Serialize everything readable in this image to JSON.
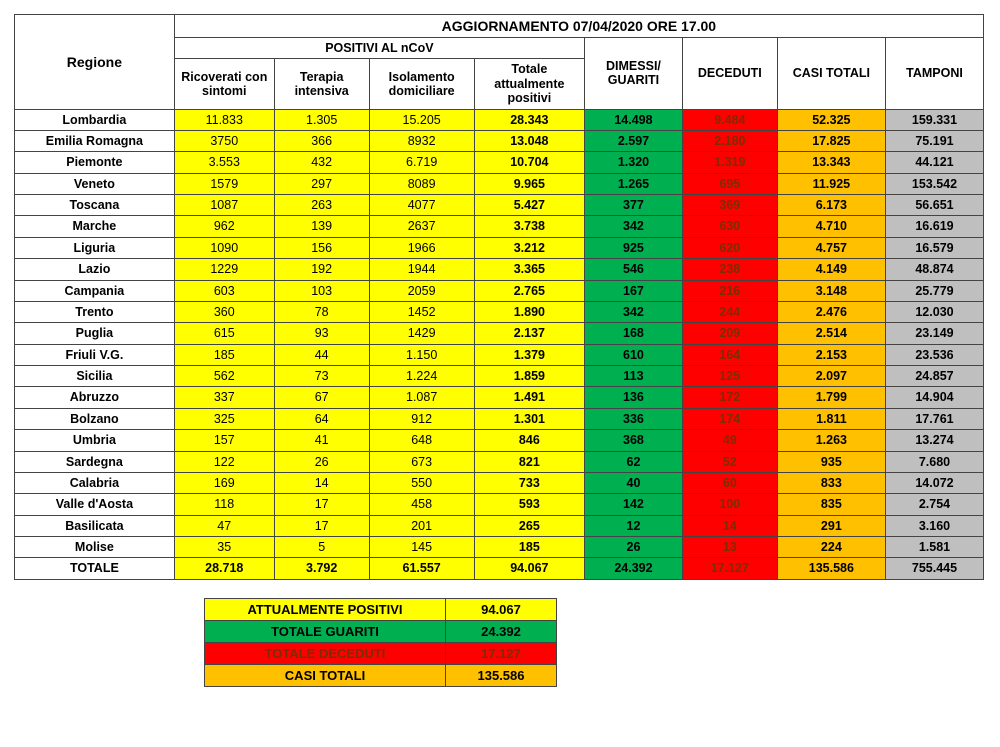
{
  "colors": {
    "yellow": "#ffff00",
    "green": "#00b050",
    "red": "#ff0000",
    "orange": "#ffc000",
    "gray": "#bfbfbf",
    "red_text": "#7a2e00",
    "border": "#444444"
  },
  "title": "AGGIORNAMENTO 07/04/2020 ORE 17.00",
  "header": {
    "regione": "Regione",
    "positivi_group": "POSITIVI AL nCoV",
    "ricoverati": "Ricoverati con sintomi",
    "terapia": "Terapia intensiva",
    "isolamento": "Isolamento domiciliare",
    "totale_pos": "Totale attualmente positivi",
    "dimessi": "DIMESSI/ GUARITI",
    "deceduti": "DECEDUTI",
    "casi_totali": "CASI TOTALI",
    "tamponi": "TAMPONI"
  },
  "rows": [
    {
      "reg": "Lombardia",
      "ric": "11.833",
      "ter": "1.305",
      "iso": "15.205",
      "tot": "28.343",
      "dim": "14.498",
      "dec": "9.484",
      "cas": "52.325",
      "tam": "159.331"
    },
    {
      "reg": "Emilia Romagna",
      "ric": "3750",
      "ter": "366",
      "iso": "8932",
      "tot": "13.048",
      "dim": "2.597",
      "dec": "2.180",
      "cas": "17.825",
      "tam": "75.191"
    },
    {
      "reg": "Piemonte",
      "ric": "3.553",
      "ter": "432",
      "iso": "6.719",
      "tot": "10.704",
      "dim": "1.320",
      "dec": "1.319",
      "cas": "13.343",
      "tam": "44.121"
    },
    {
      "reg": "Veneto",
      "ric": "1579",
      "ter": "297",
      "iso": "8089",
      "tot": "9.965",
      "dim": "1.265",
      "dec": "695",
      "cas": "11.925",
      "tam": "153.542"
    },
    {
      "reg": "Toscana",
      "ric": "1087",
      "ter": "263",
      "iso": "4077",
      "tot": "5.427",
      "dim": "377",
      "dec": "369",
      "cas": "6.173",
      "tam": "56.651"
    },
    {
      "reg": "Marche",
      "ric": "962",
      "ter": "139",
      "iso": "2637",
      "tot": "3.738",
      "dim": "342",
      "dec": "630",
      "cas": "4.710",
      "tam": "16.619"
    },
    {
      "reg": "Liguria",
      "ric": "1090",
      "ter": "156",
      "iso": "1966",
      "tot": "3.212",
      "dim": "925",
      "dec": "620",
      "cas": "4.757",
      "tam": "16.579"
    },
    {
      "reg": "Lazio",
      "ric": "1229",
      "ter": "192",
      "iso": "1944",
      "tot": "3.365",
      "dim": "546",
      "dec": "238",
      "cas": "4.149",
      "tam": "48.874"
    },
    {
      "reg": "Campania",
      "ric": "603",
      "ter": "103",
      "iso": "2059",
      "tot": "2.765",
      "dim": "167",
      "dec": "216",
      "cas": "3.148",
      "tam": "25.779"
    },
    {
      "reg": "Trento",
      "ric": "360",
      "ter": "78",
      "iso": "1452",
      "tot": "1.890",
      "dim": "342",
      "dec": "244",
      "cas": "2.476",
      "tam": "12.030"
    },
    {
      "reg": "Puglia",
      "ric": "615",
      "ter": "93",
      "iso": "1429",
      "tot": "2.137",
      "dim": "168",
      "dec": "209",
      "cas": "2.514",
      "tam": "23.149"
    },
    {
      "reg": "Friuli V.G.",
      "ric": "185",
      "ter": "44",
      "iso": "1.150",
      "tot": "1.379",
      "dim": "610",
      "dec": "164",
      "cas": "2.153",
      "tam": "23.536"
    },
    {
      "reg": "Sicilia",
      "ric": "562",
      "ter": "73",
      "iso": "1.224",
      "tot": "1.859",
      "dim": "113",
      "dec": "125",
      "cas": "2.097",
      "tam": "24.857"
    },
    {
      "reg": "Abruzzo",
      "ric": "337",
      "ter": "67",
      "iso": "1.087",
      "tot": "1.491",
      "dim": "136",
      "dec": "172",
      "cas": "1.799",
      "tam": "14.904"
    },
    {
      "reg": "Bolzano",
      "ric": "325",
      "ter": "64",
      "iso": "912",
      "tot": "1.301",
      "dim": "336",
      "dec": "174",
      "cas": "1.811",
      "tam": "17.761"
    },
    {
      "reg": "Umbria",
      "ric": "157",
      "ter": "41",
      "iso": "648",
      "tot": "846",
      "dim": "368",
      "dec": "49",
      "cas": "1.263",
      "tam": "13.274"
    },
    {
      "reg": "Sardegna",
      "ric": "122",
      "ter": "26",
      "iso": "673",
      "tot": "821",
      "dim": "62",
      "dec": "52",
      "cas": "935",
      "tam": "7.680"
    },
    {
      "reg": "Calabria",
      "ric": "169",
      "ter": "14",
      "iso": "550",
      "tot": "733",
      "dim": "40",
      "dec": "60",
      "cas": "833",
      "tam": "14.072"
    },
    {
      "reg": "Valle d'Aosta",
      "ric": "118",
      "ter": "17",
      "iso": "458",
      "tot": "593",
      "dim": "142",
      "dec": "100",
      "cas": "835",
      "tam": "2.754"
    },
    {
      "reg": "Basilicata",
      "ric": "47",
      "ter": "17",
      "iso": "201",
      "tot": "265",
      "dim": "12",
      "dec": "14",
      "cas": "291",
      "tam": "3.160"
    },
    {
      "reg": "Molise",
      "ric": "35",
      "ter": "5",
      "iso": "145",
      "tot": "185",
      "dim": "26",
      "dec": "13",
      "cas": "224",
      "tam": "1.581"
    }
  ],
  "totale": {
    "reg": "TOTALE",
    "ric": "28.718",
    "ter": "3.792",
    "iso": "61.557",
    "tot": "94.067",
    "dim": "24.392",
    "dec": "17.127",
    "cas": "135.586",
    "tam": "755.445"
  },
  "legend": {
    "att_pos_l": "ATTUALMENTE POSITIVI",
    "att_pos_v": "94.067",
    "guariti_l": "TOTALE GUARITI",
    "guariti_v": "24.392",
    "dec_l": "TOTALE DECEDUTI",
    "dec_v": "17.127",
    "casi_l": "CASI TOTALI",
    "casi_v": "135.586"
  }
}
